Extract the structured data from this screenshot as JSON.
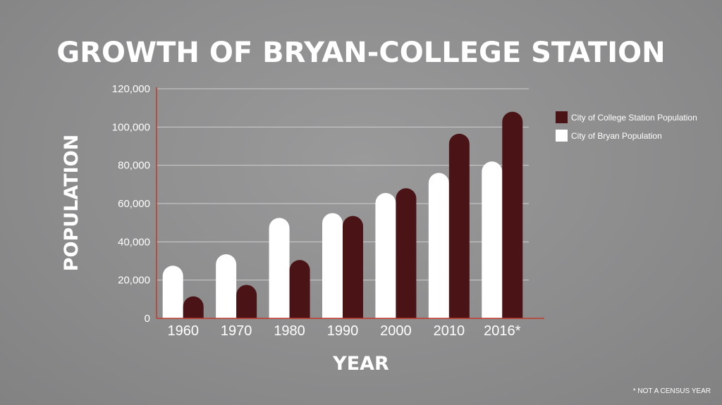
{
  "chart_data": {
    "type": "bar",
    "title": "GROWTH OF BRYAN-COLLEGE STATION",
    "xlabel": "YEAR",
    "ylabel": "POPULATION",
    "categories": [
      "1960",
      "1970",
      "1980",
      "1990",
      "2000",
      "2010",
      "2016*"
    ],
    "series": [
      {
        "name": "City of Bryan Population",
        "color": "#ffffff",
        "values": [
          27500,
          33500,
          52500,
          55000,
          65500,
          76000,
          82000
        ]
      },
      {
        "name": "City of College Station Population",
        "color": "#4a1416",
        "values": [
          11500,
          17500,
          30500,
          53500,
          68000,
          96500,
          108000
        ]
      }
    ],
    "ylim": [
      0,
      120000
    ],
    "yticks": [
      "0",
      "20,000",
      "40,000",
      "60,000",
      "80,000",
      "100,000",
      "120,000"
    ],
    "ytick_values": [
      0,
      20000,
      40000,
      60000,
      80000,
      100000,
      120000
    ],
    "grid": true,
    "legend": {
      "placement": "right",
      "entries": [
        {
          "label": "City of College Station Population",
          "color": "#4a1416"
        },
        {
          "label": "City of Bryan Population",
          "color": "#ffffff"
        }
      ]
    },
    "footnote": "* NOT A CENSUS YEAR",
    "axis_color": "#c0392b"
  }
}
